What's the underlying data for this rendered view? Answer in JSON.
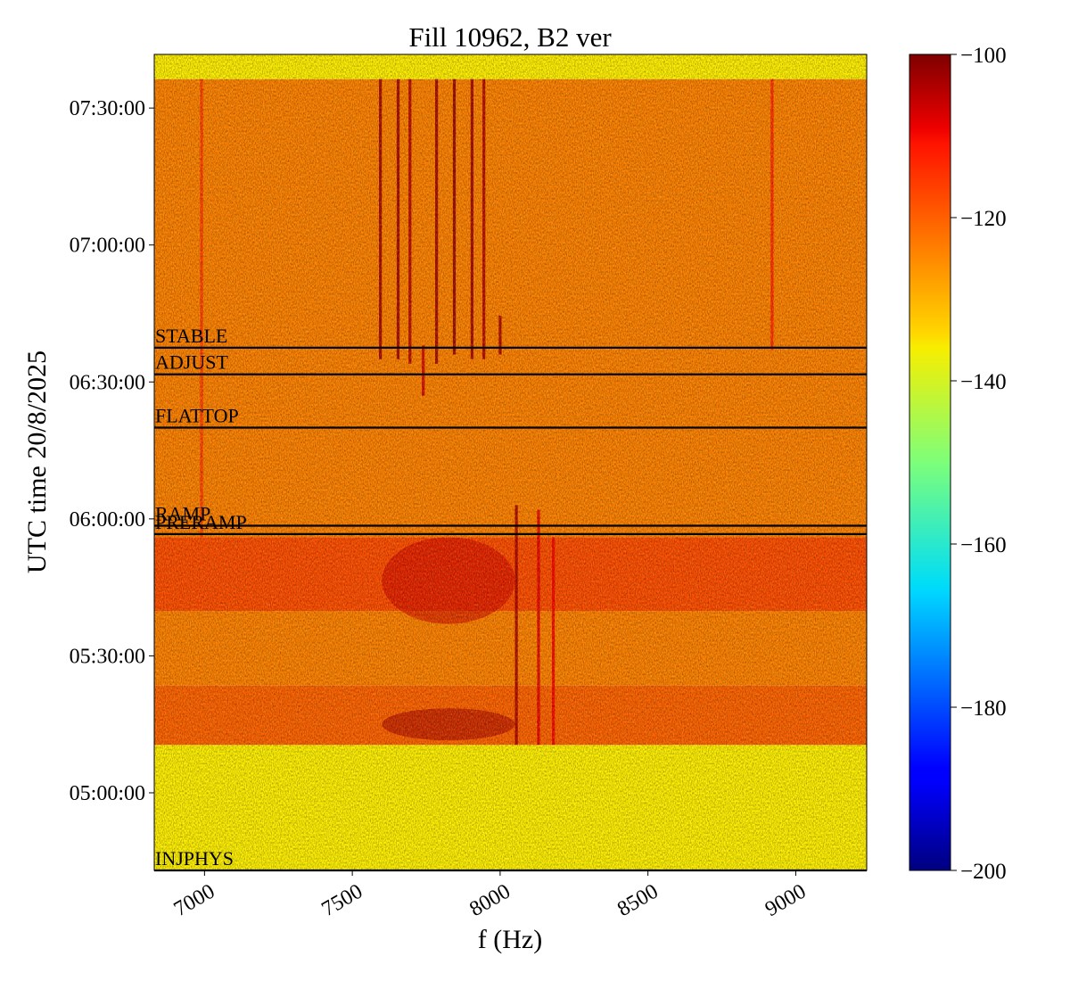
{
  "chart_data": {
    "type": "heatmap",
    "title": "Fill 10962, B2 ver",
    "xlabel": "f (Hz)",
    "ylabel": "UTC time 20/8/2025",
    "xlim": [
      6830,
      9240
    ],
    "x_ticks": [
      {
        "value": 7000,
        "label": "7000"
      },
      {
        "value": 7500,
        "label": "7500"
      },
      {
        "value": 8000,
        "label": "8000"
      },
      {
        "value": 8500,
        "label": "8500"
      },
      {
        "value": 9000,
        "label": "9000"
      }
    ],
    "ylim": [
      "04:43:00",
      "07:41:45"
    ],
    "y_ticks": [
      {
        "value": "05:00:00",
        "label": "05:00:00"
      },
      {
        "value": "05:30:00",
        "label": "05:30:00"
      },
      {
        "value": "06:00:00",
        "label": "06:00:00"
      },
      {
        "value": "06:30:00",
        "label": "06:30:00"
      },
      {
        "value": "07:00:00",
        "label": "07:00:00"
      },
      {
        "value": "07:30:00",
        "label": "07:30:00"
      }
    ],
    "colorbar": {
      "colormap": "jet",
      "range": [
        -200,
        -100
      ],
      "ticks": [
        {
          "value": -100,
          "label": "−100"
        },
        {
          "value": -120,
          "label": "−120"
        },
        {
          "value": -140,
          "label": "−140"
        },
        {
          "value": -160,
          "label": "−160"
        },
        {
          "value": -180,
          "label": "−180"
        },
        {
          "value": -200,
          "label": "−200"
        }
      ]
    },
    "beam_modes": [
      {
        "label": "INJPHYS",
        "time": "04:43:00"
      },
      {
        "label": "PRERAMP",
        "time": "05:56:40"
      },
      {
        "label": "RAMP",
        "time": "05:58:30"
      },
      {
        "label": "FLATTOP",
        "time": "06:20:00"
      },
      {
        "label": "ADJUST",
        "time": "06:31:40"
      },
      {
        "label": "STABLE",
        "time": "06:37:30"
      }
    ],
    "time_bands": [
      {
        "start": "04:43:00",
        "end": "05:10:30",
        "level": -136
      },
      {
        "start": "05:10:30",
        "end": "05:23:30",
        "level": -122
      },
      {
        "start": "05:23:30",
        "end": "05:39:50",
        "level": -125
      },
      {
        "start": "05:39:50",
        "end": "05:56:00",
        "level": -120
      },
      {
        "start": "05:56:00",
        "end": "07:36:20",
        "level": -125
      },
      {
        "start": "07:36:20",
        "end": "07:41:45",
        "level": -136
      }
    ],
    "spectral_lines": [
      {
        "f": 7595,
        "start": "06:35:00",
        "end": "07:36:20",
        "level": -103
      },
      {
        "f": 7655,
        "start": "06:35:00",
        "end": "07:36:20",
        "level": -103
      },
      {
        "f": 7695,
        "start": "06:34:00",
        "end": "07:36:20",
        "level": -105
      },
      {
        "f": 7785,
        "start": "06:34:00",
        "end": "07:36:20",
        "level": -103
      },
      {
        "f": 7845,
        "start": "06:36:00",
        "end": "07:36:20",
        "level": -102
      },
      {
        "f": 7905,
        "start": "06:35:00",
        "end": "07:36:20",
        "level": -103
      },
      {
        "f": 7945,
        "start": "06:35:00",
        "end": "07:36:20",
        "level": -105
      },
      {
        "f": 8000,
        "start": "06:36:00",
        "end": "06:44:30",
        "level": -104
      },
      {
        "f": 7740,
        "start": "06:27:00",
        "end": "06:38:00",
        "level": -108
      },
      {
        "f": 8055,
        "start": "05:10:30",
        "end": "06:03:00",
        "level": -104
      },
      {
        "f": 8130,
        "start": "05:10:30",
        "end": "06:02:00",
        "level": -110
      },
      {
        "f": 8180,
        "start": "05:10:30",
        "end": "05:56:00",
        "level": -112
      },
      {
        "f": 8920,
        "start": "06:37:00",
        "end": "07:36:20",
        "level": -116
      },
      {
        "f": 6990,
        "start": "05:56:00",
        "end": "07:36:20",
        "level": -118
      }
    ],
    "hot_regions": [
      {
        "f_range": [
          7600,
          8050
        ],
        "t_range": [
          "05:11:30",
          "05:18:30"
        ],
        "level": -104
      },
      {
        "f_range": [
          7600,
          8050
        ],
        "t_range": [
          "05:37:00",
          "05:56:00"
        ],
        "level": -108
      }
    ]
  }
}
